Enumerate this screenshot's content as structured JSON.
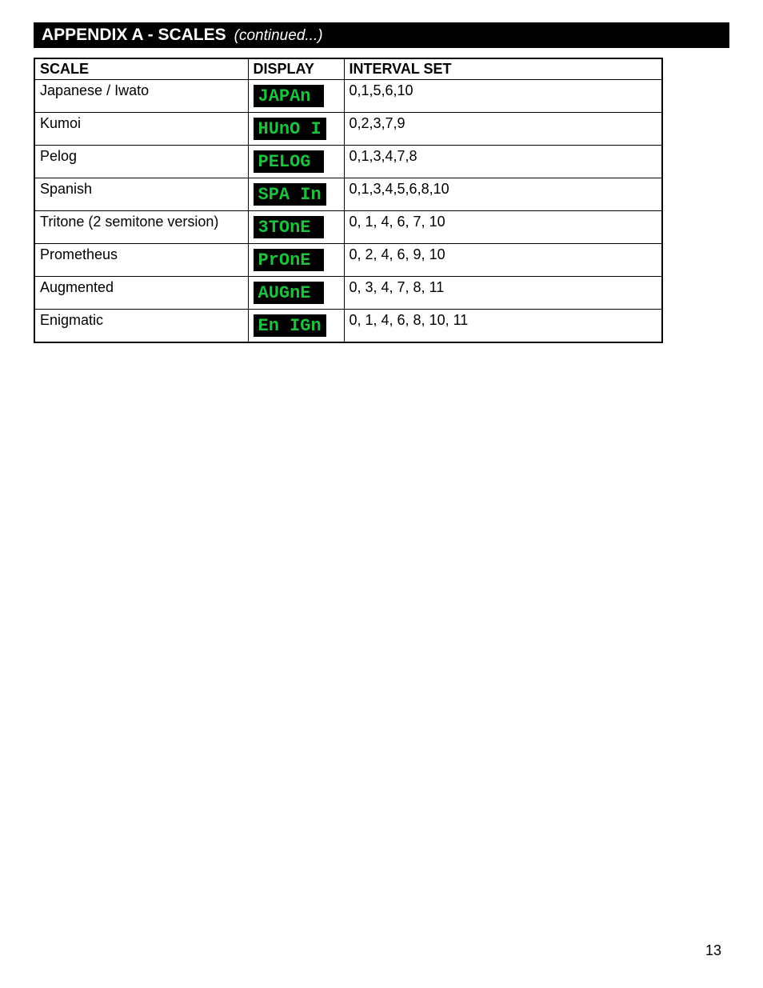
{
  "header": {
    "title": "APPENDIX A - SCALES",
    "continued": "(continued...)"
  },
  "table": {
    "columns": [
      "SCALE",
      "DISPLAY",
      "INTERVAL SET"
    ],
    "rows": [
      {
        "scale": "Japanese / Iwato",
        "display": "JAPAn",
        "interval": "0,1,5,6,10"
      },
      {
        "scale": "Kumoi",
        "display": "HUnO I",
        "interval": "0,2,3,7,9"
      },
      {
        "scale": "Pelog",
        "display": "PELOG",
        "interval": "0,1,3,4,7,8"
      },
      {
        "scale": "Spanish",
        "display": "SPA In",
        "interval": "0,1,3,4,5,6,8,10"
      },
      {
        "scale": "Tritone (2 semitone version)",
        "display": "3TOnE",
        "interval": "0, 1, 4, 6, 7, 10"
      },
      {
        "scale": "Prometheus",
        "display": "PrOnE",
        "interval": "0, 2, 4, 6, 9, 10"
      },
      {
        "scale": "Augmented",
        "display": "AUGnE",
        "interval": "0, 3, 4, 7, 8, 11"
      },
      {
        "scale": "Enigmatic",
        "display": "En IGn",
        "interval": " 0, 1, 4, 6, 8, 10, 11"
      }
    ]
  },
  "page_number": "13",
  "styles": {
    "lcd_bg": "#000000",
    "lcd_fg": "#1fbf3f",
    "header_bg": "#000000",
    "header_fg": "#ffffff",
    "body_font_size": 18,
    "header_font_size": 21
  }
}
